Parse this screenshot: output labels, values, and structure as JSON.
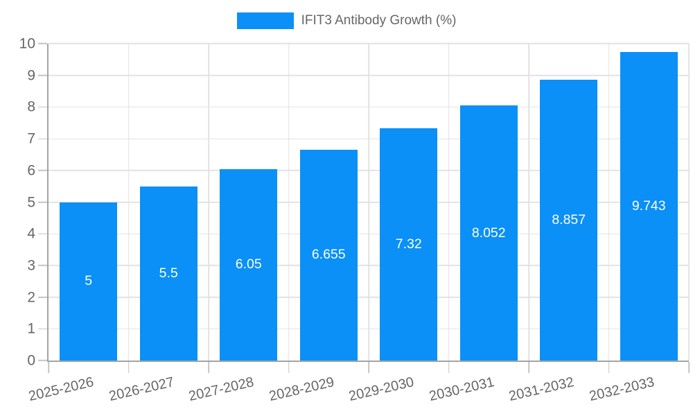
{
  "legend": {
    "label": "IFIT3 Antibody Growth (%)"
  },
  "colors": {
    "bar": "#0a90f6",
    "grid": "#e2e2e2",
    "axis": "#a3a3a3",
    "tick": "#c4c4c4",
    "tick_text": "#666666",
    "bar_label_text": "#ffffff",
    "background": "#ffffff"
  },
  "chart_data": {
    "type": "bar",
    "title": "",
    "xlabel": "",
    "ylabel": "",
    "legend_entries": [
      "IFIT3 Antibody Growth (%)"
    ],
    "legend_position": "top-center",
    "categories": [
      "2025-2026",
      "2026-2027",
      "2027-2028",
      "2028-2029",
      "2029-2030",
      "2030-2031",
      "2031-2032",
      "2032-2033"
    ],
    "series": [
      {
        "name": "IFIT3 Antibody Growth (%)",
        "values": [
          5,
          5.5,
          6.05,
          6.655,
          7.32,
          8.052,
          8.857,
          9.743
        ]
      }
    ],
    "data_labels": [
      "5",
      "5.5",
      "6.05",
      "6.655",
      "7.32",
      "8.052",
      "8.857",
      "9.743"
    ],
    "data_labels_inside_bars": true,
    "ylim": [
      0,
      10
    ],
    "ytick_step": 1,
    "yticks": [
      0,
      1,
      2,
      3,
      4,
      5,
      6,
      7,
      8,
      9,
      10
    ],
    "grid": true,
    "x_label_rotation_deg": -13,
    "bar_width_fraction_of_slot": 0.72
  }
}
